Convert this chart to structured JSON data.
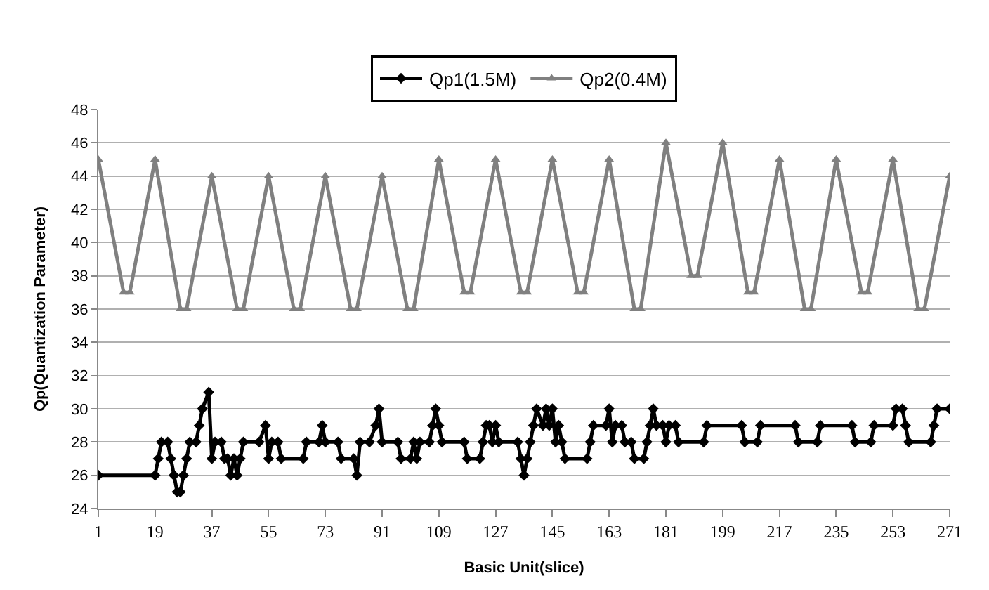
{
  "chart_data": {
    "type": "line",
    "xlabel": "Basic Unit(slice)",
    "ylabel": "Qp(Quantization Parameter)",
    "xlim": [
      1,
      271
    ],
    "xticks": [
      1,
      19,
      37,
      55,
      73,
      91,
      109,
      127,
      145,
      163,
      181,
      199,
      217,
      235,
      253,
      271
    ],
    "ylim": [
      24,
      48
    ],
    "yticks": [
      24,
      26,
      28,
      30,
      32,
      34,
      36,
      38,
      40,
      42,
      44,
      46,
      48
    ],
    "grid": "y",
    "legend": "top",
    "series": [
      {
        "name": "Qp1(1.5M)",
        "color": "#000000",
        "marker": "diamond",
        "x": [
          1,
          19,
          20,
          21,
          23,
          24,
          25,
          26,
          27,
          28,
          29,
          30,
          32,
          33,
          34,
          36,
          37,
          38,
          40,
          41,
          42,
          43,
          44,
          45,
          46,
          47,
          52,
          54,
          55,
          56,
          58,
          59,
          66,
          67,
          71,
          72,
          73,
          77,
          78,
          82,
          83,
          84,
          87,
          89,
          90,
          91,
          96,
          97,
          100,
          101,
          102,
          103,
          106,
          107,
          108,
          109,
          110,
          117,
          118,
          122,
          123,
          124,
          125,
          126,
          127,
          128,
          134,
          135,
          136,
          137,
          138,
          139,
          140,
          142,
          143,
          144,
          145,
          146,
          147,
          148,
          149,
          156,
          157,
          158,
          162,
          163,
          164,
          165,
          167,
          168,
          170,
          171,
          174,
          175,
          176,
          177,
          178,
          180,
          181,
          182,
          184,
          185,
          193,
          194,
          205,
          206,
          210,
          211,
          222,
          223,
          229,
          230,
          240,
          241,
          246,
          247,
          253,
          254,
          256,
          257,
          258,
          265,
          266,
          267,
          271
        ],
        "values": [
          26,
          26,
          27,
          28,
          28,
          27,
          26,
          25,
          25,
          26,
          27,
          28,
          28,
          29,
          30,
          31,
          27,
          28,
          28,
          27,
          27,
          26,
          27,
          26,
          27,
          28,
          28,
          29,
          27,
          28,
          28,
          27,
          27,
          28,
          28,
          29,
          28,
          28,
          27,
          27,
          26,
          28,
          28,
          29,
          30,
          28,
          28,
          27,
          27,
          28,
          27,
          28,
          28,
          29,
          30,
          29,
          28,
          28,
          27,
          27,
          28,
          29,
          29,
          28,
          29,
          28,
          28,
          27,
          26,
          27,
          28,
          29,
          30,
          29,
          30,
          29,
          30,
          28,
          29,
          28,
          27,
          27,
          28,
          29,
          29,
          30,
          28,
          29,
          29,
          28,
          28,
          27,
          27,
          28,
          29,
          30,
          29,
          29,
          28,
          29,
          29,
          28,
          28,
          29,
          29,
          28,
          28,
          29,
          29,
          28,
          28,
          29,
          29,
          28,
          28,
          29,
          29,
          30,
          30,
          29,
          28,
          28,
          29,
          30,
          30
        ]
      },
      {
        "name": "Qp2(0.4M)",
        "color": "#808080",
        "marker": "triangle",
        "x": [
          1,
          9,
          11,
          19,
          27,
          29,
          37,
          45,
          47,
          55,
          63,
          65,
          73,
          81,
          83,
          91,
          99,
          101,
          109,
          117,
          119,
          127,
          135,
          137,
          145,
          153,
          155,
          163,
          171,
          173,
          181,
          189,
          191,
          199,
          207,
          209,
          217,
          225,
          227,
          235,
          243,
          245,
          253,
          261,
          263,
          271
        ],
        "values": [
          45,
          37,
          37,
          45,
          36,
          36,
          44,
          36,
          36,
          44,
          36,
          36,
          44,
          36,
          36,
          44,
          36,
          36,
          45,
          37,
          37,
          45,
          37,
          37,
          45,
          37,
          37,
          45,
          36,
          36,
          46,
          38,
          38,
          46,
          37,
          37,
          45,
          36,
          36,
          45,
          37,
          37,
          45,
          36,
          36,
          44
        ]
      }
    ]
  }
}
